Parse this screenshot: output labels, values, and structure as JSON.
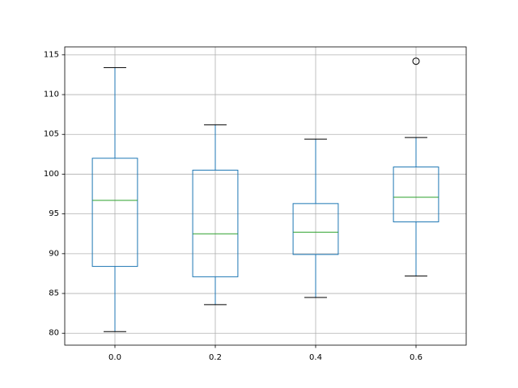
{
  "chart_data": {
    "type": "box",
    "categories": [
      "0.0",
      "0.2",
      "0.4",
      "0.6"
    ],
    "boxes": [
      {
        "category": "0.0",
        "whisker_low": 80.2,
        "q1": 88.4,
        "median": 96.7,
        "q3": 102.0,
        "whisker_high": 113.4,
        "outliers": []
      },
      {
        "category": "0.2",
        "whisker_low": 83.6,
        "q1": 87.1,
        "median": 92.5,
        "q3": 100.5,
        "whisker_high": 106.2,
        "outliers": []
      },
      {
        "category": "0.4",
        "whisker_low": 84.5,
        "q1": 89.9,
        "median": 92.7,
        "q3": 96.3,
        "whisker_high": 104.4,
        "outliers": []
      },
      {
        "category": "0.6",
        "whisker_low": 87.2,
        "q1": 94.0,
        "median": 97.1,
        "q3": 100.9,
        "whisker_high": 104.6,
        "outliers": [
          114.2
        ]
      }
    ],
    "yticks": [
      80,
      85,
      90,
      95,
      100,
      105,
      110,
      115
    ],
    "ylim": [
      78.5,
      116
    ],
    "grid": true,
    "colors": {
      "box": "#1f77b4",
      "median": "#2ca02c",
      "cap": "#000000",
      "grid": "#b0b0b0",
      "axes": "#000000"
    }
  }
}
